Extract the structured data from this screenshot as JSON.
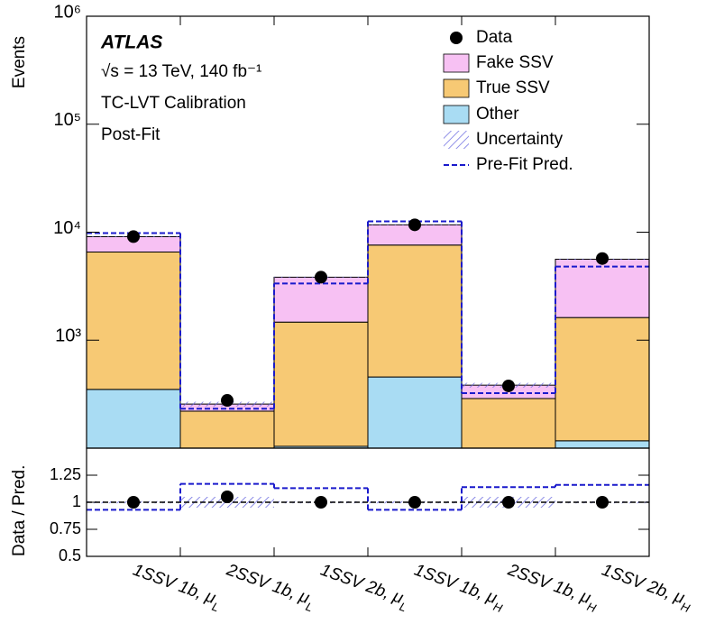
{
  "chart_data": {
    "type": "stacked_histogram",
    "ylabel": "Events",
    "log_scale": true,
    "ylim": [
      100,
      1000000
    ],
    "yticks": [
      {
        "value": 1000,
        "label": "10³"
      },
      {
        "value": 10000,
        "label": "10⁴"
      },
      {
        "value": 100000,
        "label": "10⁵"
      },
      {
        "value": 1000000,
        "label": "10⁶"
      }
    ],
    "categories": [
      "1SSV 1b, μ",
      "2SSV 1b, μ",
      "1SSV 2b, μ",
      "1SSV 1b, μ",
      "2SSV 1b, μ",
      "1SSV 2b, μ"
    ],
    "category_subscripts": [
      "L",
      "L",
      "L",
      "H",
      "H",
      "H"
    ],
    "annotations": [
      "ATLAS",
      "√s = 13 TeV, 140 fb⁻¹",
      "TC-LVT Calibration",
      "Post-Fit"
    ],
    "series": [
      {
        "name": "Other",
        "color": "#a9dcf3",
        "values": [
          350,
          5,
          104,
          456,
          5,
          117
        ]
      },
      {
        "name": "True SSV",
        "color": "#f7c974",
        "values": [
          6200,
          215,
          1366,
          7144,
          283,
          1503
        ]
      },
      {
        "name": "Fake SSV",
        "color": "#f7c1f3",
        "values": [
          2540,
          36,
          2360,
          4100,
          95,
          4000
        ]
      }
    ],
    "data": {
      "name": "Data",
      "color": "#000000",
      "values": [
        9100,
        277,
        3830,
        11700,
        377,
        5700
      ]
    },
    "uncertainty": {
      "name": "Uncertainty",
      "color": "#6a6ae0",
      "values": [
        0.01,
        0.05,
        0.01,
        0.01,
        0.05,
        0.01
      ]
    },
    "prefit": {
      "name": "Pre-Fit Pred.",
      "color": "#1a1acc",
      "values": [
        9800,
        232,
        3350,
        12600,
        323,
        4800
      ]
    },
    "ratio": {
      "type": "ratio",
      "ylabel": "Data / Pred.",
      "ylim": [
        0.5,
        1.5
      ],
      "yticks": [
        0.5,
        0.75,
        1,
        1.25
      ],
      "reference": 1,
      "data_values": [
        1,
        1.05,
        1,
        1,
        1,
        1
      ],
      "prefit_values": [
        0.93,
        1.17,
        1.13,
        0.93,
        1.14,
        1.16
      ]
    }
  }
}
